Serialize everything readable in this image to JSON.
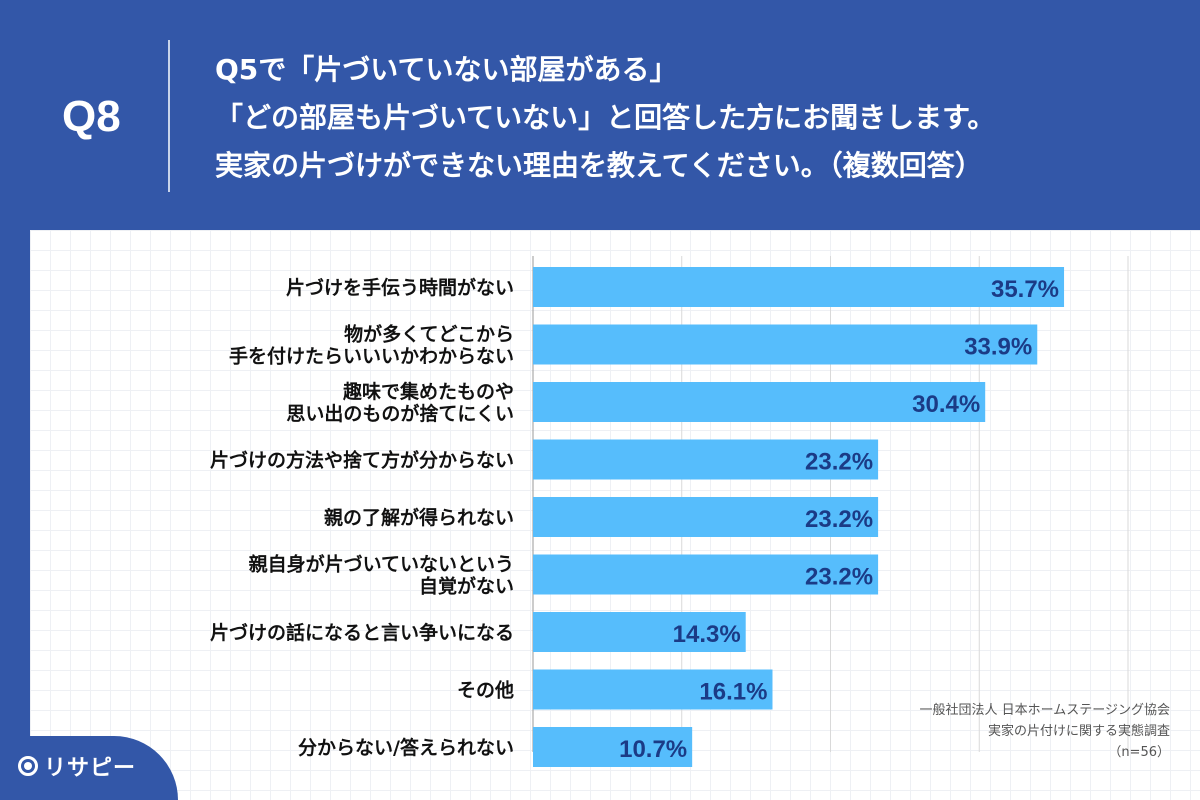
{
  "header": {
    "question_number": "Q8",
    "question_lines": [
      "Q5で「片づいていない部屋がある」",
      "「どの部屋も片づいていない」と回答した方にお聞きします。",
      "実家の片づけができない理由を教えてください。（複数回答）"
    ]
  },
  "chart_data": {
    "type": "bar",
    "orientation": "horizontal",
    "categories": [
      "片づけを手伝う時間がない",
      "物が多くてどこから\n手を付けたらいいいかわからない",
      "趣味で集めたものや\n思い出のものが捨てにくい",
      "片づけの方法や捨て方が分からない",
      "親の了解が得られない",
      "親自身が片づいていないという\n自覚がない",
      "片づけの話になると言い争いになる",
      "その他",
      "分からない/答えられない"
    ],
    "values": [
      35.7,
      33.9,
      30.4,
      23.2,
      23.2,
      23.2,
      14.3,
      16.1,
      10.7
    ],
    "value_labels": [
      "35.7%",
      "33.9%",
      "30.4%",
      "23.2%",
      "23.2%",
      "23.2%",
      "14.3%",
      "16.1%",
      "10.7%"
    ],
    "xlim": [
      0,
      40
    ],
    "grid": true,
    "bar_color": "#56bdfc",
    "label_color": "#1b3b86"
  },
  "source": {
    "lines": [
      "一般社団法人 日本ホームステージング協会",
      "実家の片付けに関する実態調査",
      "（n=56）"
    ]
  },
  "logo": {
    "text": "リサピー"
  },
  "colors": {
    "background": "#3357a8",
    "panel": "#ffffff"
  }
}
